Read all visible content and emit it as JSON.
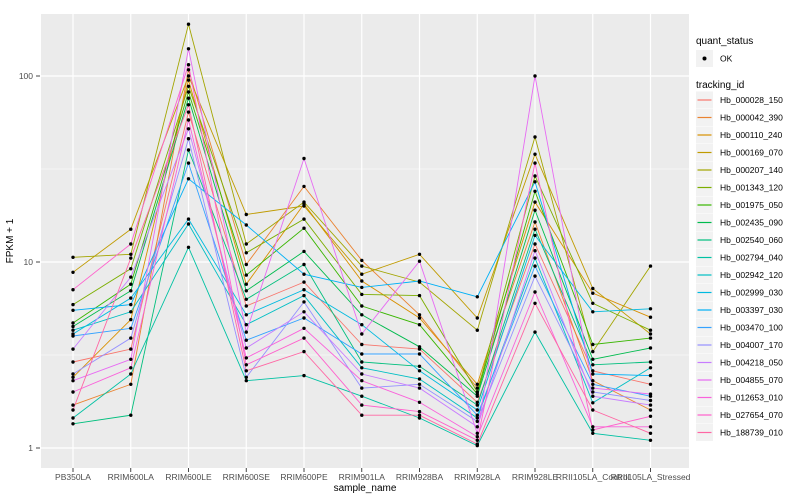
{
  "figure": {
    "xlabel": "sample_name",
    "ylabel": "FPKM + 1"
  },
  "legend": {
    "quant_status_title": "quant_status",
    "quant_status_items": [
      {
        "label": "OK",
        "symbol": "black-point"
      }
    ],
    "tracking_id_title": "tracking_id"
  },
  "colors": {
    "panel_bg": "#EBEBEB",
    "grid": "#FFFFFF",
    "legend_key_bg": "#F2F2F2",
    "point": "#000000",
    "tick_text": "#4D4D4D",
    "axis_tick": "#333333"
  },
  "chart_data": {
    "type": "line",
    "title": "",
    "xlabel": "sample_name",
    "ylabel": "FPKM + 1",
    "y_scale": "log10",
    "ylim": [
      1,
      219
    ],
    "y_major_ticks": [
      1,
      10,
      100
    ],
    "y_minor_ticks": [
      3.162,
      31.62
    ],
    "grid": true,
    "legend_position": "right",
    "point_color": "#000000",
    "quant_status": "OK",
    "categories": [
      "PB350LA",
      "RRIM600LA",
      "RRIM600LE",
      "RRIM600SE",
      "RRIM600PE",
      "RRIM901LA",
      "RRIM928BA",
      "RRIM928LA",
      "RRIM928LE",
      "RRII105LA_Control",
      "RRII105LA_Stressed"
    ],
    "series": [
      {
        "name": "Hb_000028_150",
        "color": "#F8766D",
        "values": [
          2.9,
          3.4,
          64,
          5.8,
          7.8,
          3.6,
          3.4,
          1.76,
          12.5,
          2.6,
          2.2
        ]
      },
      {
        "name": "Hb_000042_390",
        "color": "#EA8331",
        "values": [
          1.7,
          2.2,
          108,
          9.7,
          25.5,
          10.2,
          5.2,
          2.1,
          16.4,
          2.3,
          1.6
        ]
      },
      {
        "name": "Hb_000110_240",
        "color": "#D89000",
        "values": [
          2.4,
          4.9,
          95,
          7.6,
          20.5,
          7.9,
          5.0,
          2.2,
          21,
          6.8,
          5.05
        ]
      },
      {
        "name": "Hb_000169_070",
        "color": "#C09B00",
        "values": [
          8.8,
          15,
          100,
          18,
          20,
          8.6,
          11,
          5.0,
          38,
          7.2,
          4.1
        ]
      },
      {
        "name": "Hb_000207_140",
        "color": "#A3A500",
        "values": [
          10.6,
          11,
          190,
          12.5,
          21,
          9.5,
          7.8,
          4.3,
          47,
          3.3,
          9.5
        ]
      },
      {
        "name": "Hb_001343_120",
        "color": "#7CAE00",
        "values": [
          5.9,
          9.2,
          88,
          11.2,
          17,
          6.7,
          6.6,
          2.0,
          29,
          6.0,
          4.3
        ]
      },
      {
        "name": "Hb_001975_050",
        "color": "#39B600",
        "values": [
          4.7,
          7.6,
          82,
          8.5,
          15.2,
          5.8,
          4.6,
          1.95,
          24,
          3.6,
          3.9
        ]
      },
      {
        "name": "Hb_002435_090",
        "color": "#00BB4E",
        "values": [
          4.5,
          7.0,
          76,
          7.0,
          11.4,
          5.2,
          3.5,
          1.9,
          19,
          3.0,
          3.45
        ]
      },
      {
        "name": "Hb_002540_060",
        "color": "#00BF7D",
        "values": [
          1.35,
          1.5,
          40,
          6.3,
          9.7,
          2.9,
          2.75,
          1.7,
          15,
          2.8,
          2.9
        ]
      },
      {
        "name": "Hb_002794_040",
        "color": "#00C1A3",
        "values": [
          1.45,
          2.5,
          12,
          2.3,
          2.45,
          1.9,
          1.45,
          1.03,
          4.2,
          1.2,
          1.1
        ]
      },
      {
        "name": "Hb_002942_120",
        "color": "#00BFC4",
        "values": [
          4.3,
          5.4,
          16,
          4.6,
          6.6,
          2.7,
          2.35,
          1.45,
          10.5,
          1.75,
          2.7
        ]
      },
      {
        "name": "Hb_002999_030",
        "color": "#00BAE0",
        "values": [
          4.1,
          6.4,
          17,
          5.2,
          7.1,
          4.6,
          2.6,
          1.6,
          13.9,
          5.4,
          5.6
        ]
      },
      {
        "name": "Hb_003397_030",
        "color": "#00B0F6",
        "values": [
          5.5,
          5.9,
          28,
          15.8,
          8.6,
          7.3,
          7.9,
          6.5,
          27,
          2.5,
          2.45
        ]
      },
      {
        "name": "Hb_003470_100",
        "color": "#35A2FF",
        "values": [
          4.0,
          4.4,
          34,
          3.8,
          5.0,
          3.2,
          3.2,
          1.5,
          9.5,
          2.2,
          1.9
        ]
      },
      {
        "name": "Hb_004007_170",
        "color": "#9590FF",
        "values": [
          2.5,
          3.9,
          46,
          2.4,
          6.1,
          2.1,
          2.2,
          1.39,
          8.4,
          2.0,
          1.8
        ]
      },
      {
        "name": "Hb_004218_050",
        "color": "#C77CFF",
        "values": [
          3.4,
          8.3,
          52,
          3.45,
          5.4,
          2.5,
          2.1,
          1.3,
          11.5,
          1.9,
          1.7
        ]
      },
      {
        "name": "Hb_004855_070",
        "color": "#E76BF3",
        "values": [
          2.3,
          3.0,
          140,
          4.2,
          36,
          4.1,
          10.1,
          1.2,
          100,
          2.1,
          1.95
        ]
      },
      {
        "name": "Hb_012653_010",
        "color": "#FA62DB",
        "values": [
          2.0,
          2.7,
          58,
          3.05,
          4.4,
          2.3,
          1.76,
          1.15,
          6.9,
          1.3,
          1.3
        ]
      },
      {
        "name": "Hb_027654_070",
        "color": "#FF61CC",
        "values": [
          7.1,
          12.5,
          115,
          2.8,
          3.9,
          1.7,
          1.57,
          1.1,
          34,
          1.25,
          1.48
        ]
      },
      {
        "name": "Hb_188739_010",
        "color": "#FF67A4",
        "values": [
          1.6,
          10.5,
          70,
          2.6,
          3.3,
          1.5,
          1.5,
          1.05,
          6.0,
          1.6,
          1.2
        ]
      }
    ]
  }
}
